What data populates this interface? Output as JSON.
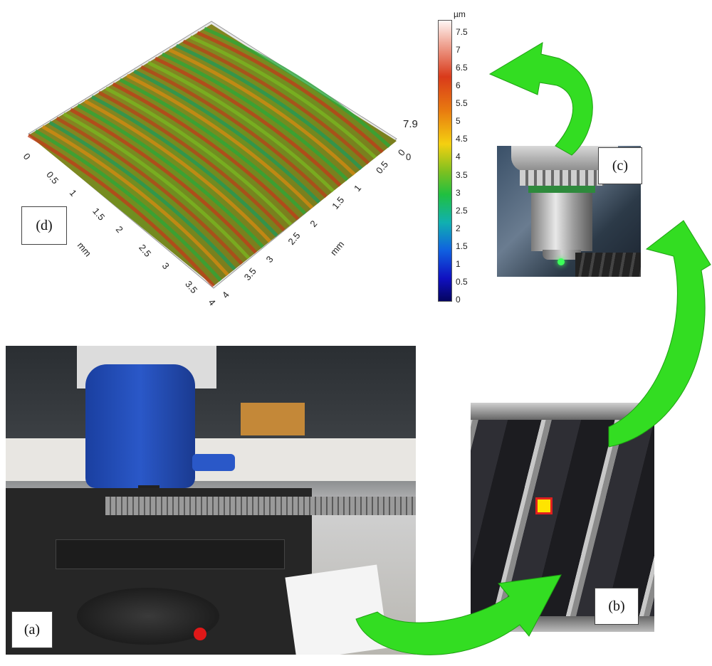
{
  "labels": {
    "a": "(a)",
    "b": "(b)",
    "c": "(c)",
    "d": "(d)"
  },
  "colorbar": {
    "unit": "µm",
    "ticks": [
      "7.5",
      "7",
      "6.5",
      "6",
      "5.5",
      "5",
      "4.5",
      "4",
      "3.5",
      "3",
      "2.5",
      "2",
      "1.5",
      "1",
      "0.5",
      "0"
    ]
  },
  "surface": {
    "z_max_label": "7.9",
    "z_min_label": "0",
    "x_axis": {
      "ticks": [
        "0",
        "0.5",
        "1",
        "1.5",
        "2",
        "2.5",
        "3",
        "3.5",
        "4"
      ],
      "unit": "mm"
    },
    "y_axis": {
      "ticks": [
        "0",
        "0.5",
        "1",
        "1.5",
        "2",
        "2.5",
        "3",
        "3.5",
        "4"
      ],
      "unit": "mm"
    }
  },
  "colors": {
    "arrow": "#33dd22",
    "marker_fill": "#ffe400",
    "marker_border": "#e02020"
  }
}
